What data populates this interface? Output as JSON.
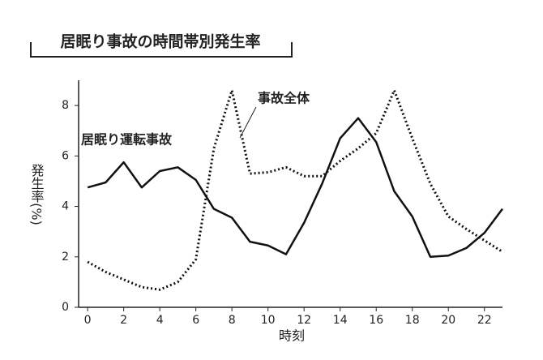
{
  "chart_data": {
    "type": "line",
    "title": "居眠り事故の時間帯別発生率",
    "x_label": "時刻",
    "y_label": "発生率(%)",
    "x": [
      0,
      1,
      2,
      3,
      4,
      5,
      6,
      7,
      8,
      9,
      10,
      11,
      12,
      13,
      14,
      15,
      16,
      17,
      18,
      19,
      20,
      21,
      22,
      23
    ],
    "series": [
      {
        "name": "居眠り運転事故",
        "color": "#111111",
        "style": "solid",
        "values": [
          4.75,
          4.95,
          5.75,
          4.75,
          5.4,
          5.55,
          5.05,
          3.9,
          3.55,
          2.6,
          2.45,
          2.1,
          3.35,
          4.9,
          6.7,
          7.5,
          6.55,
          4.6,
          3.6,
          2.0,
          2.05,
          2.35,
          2.95,
          3.9
        ]
      },
      {
        "name": "事故全体",
        "color": "#111111",
        "style": "dotted",
        "values": [
          1.8,
          1.4,
          1.1,
          0.8,
          0.7,
          1.0,
          1.9,
          6.3,
          8.6,
          5.3,
          5.35,
          5.55,
          5.2,
          5.2,
          5.8,
          6.3,
          6.9,
          8.6,
          6.7,
          4.9,
          3.6,
          3.1,
          2.65,
          2.2
        ]
      }
    ],
    "xlim": [
      -0.5,
      23
    ],
    "ylim": [
      0,
      9
    ],
    "xticks": [
      0,
      2,
      4,
      6,
      8,
      10,
      12,
      14,
      16,
      18,
      20,
      22
    ],
    "yticks": [
      0,
      2,
      4,
      6,
      8
    ]
  }
}
